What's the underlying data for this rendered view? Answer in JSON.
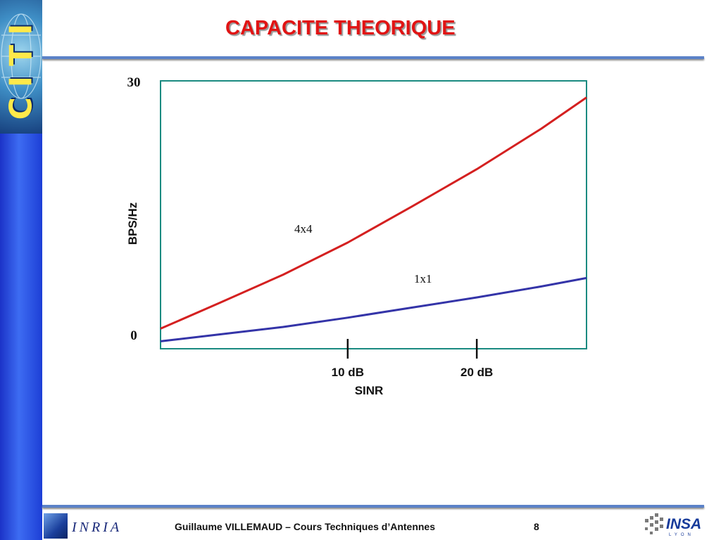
{
  "slide": {
    "title": "CAPACITE THEORIQUE",
    "logo_text": "CITI",
    "footer_author": "Guillaume VILLEMAUD – Cours Techniques d’Antennes",
    "page_number": "8",
    "inria_logo_text": "INRIA",
    "insa_logo_text": "INSA",
    "insa_logo_sub": "LYON"
  },
  "colors": {
    "title": "#e11414",
    "rule": "#5b82c8",
    "chart_frame": "#1a8a80",
    "series_4x4": "#d42020",
    "series_1x1": "#3434a8"
  },
  "chart_data": {
    "type": "line",
    "title": "",
    "xlabel": "SINR",
    "ylabel": "BPS/Hz",
    "ylim": [
      0,
      30
    ],
    "xlim": [
      -4.5,
      28.5
    ],
    "x_ticks": [
      {
        "value": 10,
        "label": "10 dB"
      },
      {
        "value": 20,
        "label": "20 dB"
      }
    ],
    "y_ticks": [
      {
        "value": 0,
        "label": "0"
      },
      {
        "value": 30,
        "label": "30"
      }
    ],
    "grid": false,
    "series": [
      {
        "name": "4x4",
        "x": [
          -4.5,
          0,
          5,
          10,
          15,
          20,
          25,
          28.5
        ],
        "y": [
          0.8,
          3.8,
          7.2,
          11.0,
          15.3,
          19.7,
          24.5,
          28.2
        ]
      },
      {
        "name": "1x1",
        "x": [
          -4.5,
          0,
          5,
          10,
          15,
          20,
          25,
          28.5
        ],
        "y": [
          -0.7,
          0.1,
          1.0,
          2.1,
          3.3,
          4.5,
          5.8,
          6.8
        ]
      }
    ]
  }
}
